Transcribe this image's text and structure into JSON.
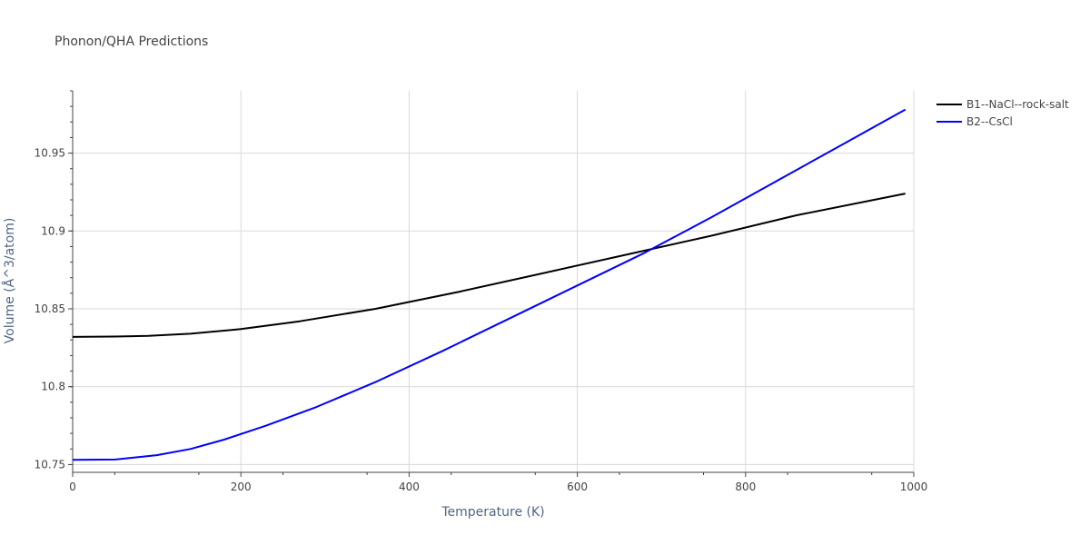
{
  "chart_data": {
    "type": "line",
    "title": "Phonon/QHA Predictions",
    "xlabel": "Temperature (K)",
    "ylabel": "Volume (Å^3/atom)",
    "xlim": [
      0,
      1000
    ],
    "ylim": [
      10.745,
      10.99
    ],
    "x_ticks": [
      "0",
      "200",
      "400",
      "600",
      "800",
      "1000"
    ],
    "y_ticks": [
      "10.75",
      "10.8",
      "10.85",
      "10.9",
      "10.95"
    ],
    "grid": true,
    "legend_position": "top-right",
    "series": [
      {
        "name": "B1--NaCl--rock-salt",
        "color": "#000000",
        "x": [
          0,
          50,
          90,
          140,
          200,
          270,
          360,
          460,
          560,
          660,
          760,
          860,
          990
        ],
        "y": [
          10.832,
          10.8322,
          10.8326,
          10.834,
          10.837,
          10.842,
          10.85,
          10.861,
          10.873,
          10.885,
          10.897,
          10.91,
          10.924
        ]
      },
      {
        "name": "B2--CsCl",
        "color": "#0000ff",
        "x": [
          0,
          50,
          100,
          140,
          180,
          230,
          290,
          360,
          440,
          520,
          600,
          680,
          760,
          840,
          920,
          990
        ],
        "y": [
          10.753,
          10.7532,
          10.756,
          10.76,
          10.766,
          10.775,
          10.787,
          10.803,
          10.823,
          10.844,
          10.865,
          10.886,
          10.909,
          10.933,
          10.957,
          10.978
        ]
      }
    ]
  }
}
